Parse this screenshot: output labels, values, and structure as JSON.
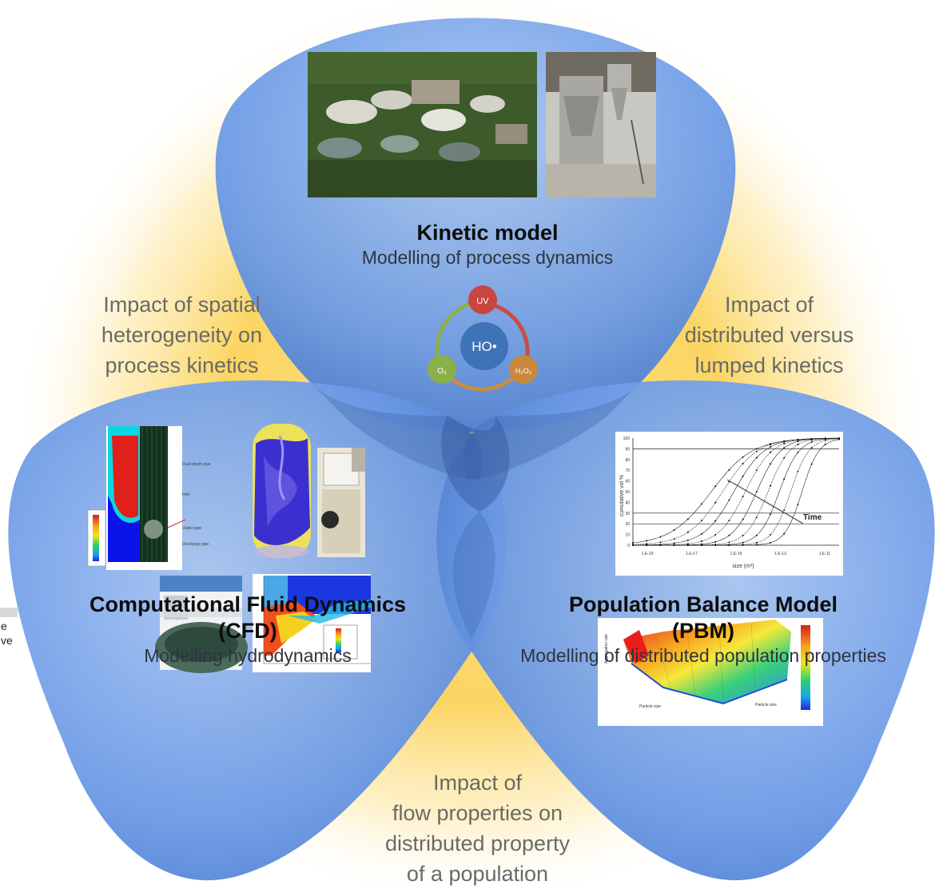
{
  "kinetic": {
    "title": "Kinetic model",
    "subtitle": "Modelling of process dynamics",
    "cycle": {
      "center": "HO•",
      "uv": "UV",
      "o3": "O₃",
      "h2o2": "H₂O₂"
    }
  },
  "cfd": {
    "title_line1": "Computational Fluid Dynamics",
    "title_line2": "(CFD)",
    "subtitle": "Modelling hydrodynamics"
  },
  "pbm": {
    "title_line1": "Population Balance Model",
    "title_line2": "(PBM)",
    "subtitle": "Modelling of distributed population properties",
    "chart": {
      "ylabel": "cumulative vol %",
      "xlabel": "size (m³)",
      "annotation": "Time",
      "yticks": [
        "100",
        "90",
        "80",
        "70",
        "60",
        "50",
        "40",
        "30",
        "20",
        "10",
        "0"
      ],
      "xticks": [
        "1.E-19",
        "1.E-17",
        "1.E-15",
        "1.E-13",
        "1.E-11"
      ]
    }
  },
  "impacts": {
    "left": [
      "Impact of spatial",
      "heterogeneity on",
      "process kinetics"
    ],
    "right": [
      "Impact of",
      "distributed versus",
      "lumped kinetics"
    ],
    "bottom": [
      "Impact of",
      "flow properties on",
      "distributed property",
      "of a population"
    ]
  },
  "edge_fragment": [
    "e",
    "ve"
  ],
  "colors": {
    "lobe_blue": "#6a9ae8",
    "lobe_blue_dark": "#4f7fd3",
    "glow_yellow": "#fbd35a",
    "uv_red": "#c8463f",
    "o3_green": "#8ab04a",
    "h2o2_orange": "#c9883b",
    "ho_blue": "#3f73b8"
  }
}
